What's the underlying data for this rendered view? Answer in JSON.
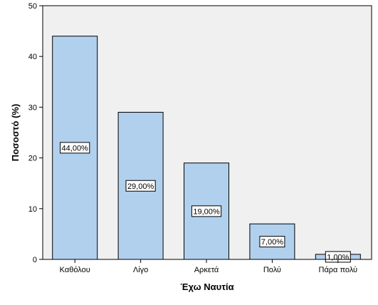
{
  "chart_data": {
    "type": "bar",
    "categories": [
      "Καθόλου",
      "Λίγο",
      "Αρκετά",
      "Πολύ",
      "Πάρα πολύ"
    ],
    "values": [
      44,
      29,
      19,
      7,
      1
    ],
    "data_labels": [
      "44,00%",
      "29,00%",
      "19,00%",
      "7,00%",
      "1,00%"
    ],
    "xlabel": "Έχω Ναυτία",
    "ylabel": "Ποσοστό (%)",
    "ylim": [
      0,
      50
    ],
    "yticks": [
      0,
      10,
      20,
      30,
      40,
      50
    ],
    "grid": false,
    "legend": "none",
    "colors": {
      "plot_background": "#f0f0f0",
      "bar_fill": "#b0d0ee",
      "bar_stroke": "#000000",
      "label_box_fill": "#ffffff"
    }
  }
}
